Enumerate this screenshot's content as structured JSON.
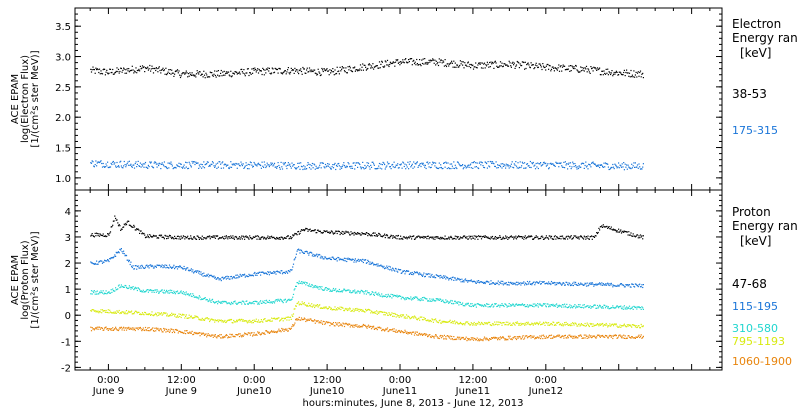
{
  "chart_data": [
    {
      "type": "scatter",
      "panel": "electron",
      "ylabel_lines": [
        "ACE EPAM",
        "log(Electron Flux)",
        "[1/(cm²s ster MeV)]"
      ],
      "ylim": [
        0.8,
        3.8
      ],
      "yticks": [
        1.0,
        1.5,
        2.0,
        2.5,
        3.0,
        3.5
      ],
      "ytick_labels": [
        "1.0",
        "1.5",
        "2.0",
        "2.5",
        "3.0",
        "3.5"
      ],
      "legend_title_lines": [
        "Electron",
        "Energy ran",
        "[keV]"
      ],
      "series": [
        {
          "name": "38-53",
          "color": "#000000",
          "x": [
            -3,
            0,
            6,
            12,
            18,
            24,
            30,
            36,
            42,
            48,
            54,
            60,
            66,
            72,
            78,
            84,
            88
          ],
          "y": [
            2.78,
            2.75,
            2.82,
            2.72,
            2.72,
            2.76,
            2.78,
            2.75,
            2.84,
            2.92,
            2.92,
            2.86,
            2.88,
            2.83,
            2.8,
            2.74,
            2.72
          ]
        },
        {
          "name": "175-315",
          "color": "#1874d8",
          "x": [
            -3,
            6,
            12,
            24,
            36,
            48,
            60,
            72,
            88
          ],
          "y": [
            1.25,
            1.22,
            1.22,
            1.22,
            1.2,
            1.22,
            1.22,
            1.22,
            1.2
          ]
        }
      ]
    },
    {
      "type": "scatter",
      "panel": "proton",
      "ylabel_lines": [
        "ACE EPAM",
        "log(Proton Flux)",
        "[1/(cm²s ster MeV)]"
      ],
      "ylim": [
        -2.1,
        4.8
      ],
      "yticks": [
        -2,
        -1,
        0,
        1,
        2,
        3,
        4
      ],
      "ytick_labels": [
        "-2",
        "-1",
        "0",
        "1",
        "2",
        "3",
        "4"
      ],
      "legend_title_lines": [
        "Proton",
        "Energy ran",
        "[keV]"
      ],
      "series": [
        {
          "name": "47-68",
          "color": "#000000",
          "x": [
            -3,
            0,
            1,
            2,
            3,
            6,
            12,
            24,
            30,
            32,
            36,
            42,
            48,
            54,
            60,
            72,
            80,
            81,
            88
          ],
          "y": [
            3.1,
            3.1,
            3.8,
            3.3,
            3.6,
            3.05,
            3.0,
            3.0,
            3.0,
            3.3,
            3.2,
            3.15,
            3.0,
            3.0,
            3.0,
            3.0,
            3.0,
            3.45,
            3.0
          ]
        },
        {
          "name": "115-195",
          "color": "#1874d8",
          "x": [
            -3,
            0,
            2,
            4,
            8,
            12,
            18,
            24,
            30,
            31,
            36,
            42,
            48,
            54,
            60,
            66,
            72,
            80,
            88
          ],
          "y": [
            2.0,
            2.1,
            2.55,
            1.85,
            1.9,
            1.85,
            1.4,
            1.6,
            1.7,
            2.5,
            2.2,
            2.1,
            1.7,
            1.5,
            1.3,
            1.25,
            1.25,
            1.2,
            1.15
          ]
        },
        {
          "name": "310-580",
          "color": "#21d6cf",
          "x": [
            -3,
            0,
            2,
            6,
            12,
            18,
            24,
            30,
            31,
            36,
            42,
            48,
            54,
            60,
            72,
            80,
            88
          ],
          "y": [
            0.9,
            0.9,
            1.15,
            0.95,
            0.9,
            0.5,
            0.5,
            0.6,
            1.3,
            1.0,
            0.9,
            0.7,
            0.6,
            0.4,
            0.4,
            0.35,
            0.3
          ]
        },
        {
          "name": "795-1193",
          "color": "#d8ea10",
          "x": [
            -3,
            6,
            12,
            18,
            24,
            30,
            31,
            36,
            42,
            48,
            54,
            60,
            72,
            88
          ],
          "y": [
            0.2,
            0.1,
            0.0,
            -0.2,
            -0.2,
            -0.1,
            0.5,
            0.3,
            0.2,
            0.0,
            -0.2,
            -0.3,
            -0.3,
            -0.4
          ]
        },
        {
          "name": "1060-1900",
          "color": "#e8840c",
          "x": [
            -3,
            6,
            12,
            18,
            24,
            30,
            31,
            36,
            42,
            48,
            54,
            60,
            72,
            88
          ],
          "y": [
            -0.5,
            -0.5,
            -0.6,
            -0.8,
            -0.7,
            -0.5,
            -0.1,
            -0.3,
            -0.4,
            -0.6,
            -0.8,
            -0.9,
            -0.8,
            -0.8
          ]
        }
      ]
    }
  ],
  "time_axis": {
    "xlim": [
      -5.5,
      101
    ],
    "ticks": [
      0,
      12,
      24,
      36,
      48,
      60,
      72,
      84,
      96
    ],
    "tick_labels": [
      [
        "0:00",
        "June 9"
      ],
      [
        "12:00",
        "June 9"
      ],
      [
        "0:00",
        "June10"
      ],
      [
        "12:00",
        "June10"
      ],
      [
        "0:00",
        "June11"
      ],
      [
        "12:00",
        "June11"
      ],
      [
        "0:00",
        "June12"
      ]
    ],
    "tick_label_hours": [
      0,
      12,
      24,
      36,
      48,
      60,
      72
    ],
    "xlabel": "hours:minutes,  June  8, 2013 - June 12, 2013"
  }
}
